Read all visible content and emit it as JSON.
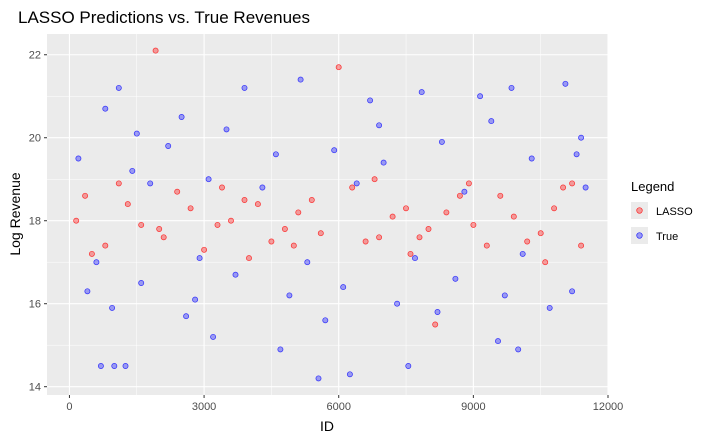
{
  "chart_data": {
    "type": "scatter",
    "title": "LASSO Predictions vs. True Revenues",
    "xlabel": "ID",
    "ylabel": "Log Revenue",
    "xlim": [
      -500,
      12000
    ],
    "ylim": [
      13.8,
      22.5
    ],
    "x_ticks": [
      0,
      3000,
      6000,
      9000,
      12000
    ],
    "x_tick_labels": [
      "0",
      "3000",
      "6000",
      "9000",
      "12000"
    ],
    "y_ticks": [
      14,
      16,
      18,
      20,
      22
    ],
    "y_tick_labels": [
      "14",
      "16",
      "18",
      "20",
      "22"
    ],
    "grid": true,
    "legend": {
      "title": "Legend",
      "position": "right",
      "entries": [
        {
          "label": "LASSO",
          "color": "#ff0000"
        },
        {
          "label": "True",
          "color": "#0000ff"
        }
      ]
    },
    "series": [
      {
        "name": "LASSO",
        "color": "#ff0000",
        "points": [
          [
            1920,
            22.1
          ],
          [
            6000,
            21.7
          ],
          [
            8150,
            15.5
          ],
          [
            350,
            18.6
          ],
          [
            800,
            17.4
          ],
          [
            1300,
            18.4
          ],
          [
            2100,
            17.6
          ],
          [
            2700,
            18.3
          ],
          [
            3300,
            17.9
          ],
          [
            3900,
            18.5
          ],
          [
            4500,
            17.5
          ],
          [
            5100,
            18.2
          ],
          [
            5600,
            17.7
          ],
          [
            6300,
            18.8
          ],
          [
            6900,
            17.6
          ],
          [
            7500,
            18.3
          ],
          [
            8000,
            17.8
          ],
          [
            8700,
            18.6
          ],
          [
            9300,
            17.4
          ],
          [
            9900,
            18.1
          ],
          [
            10500,
            17.7
          ],
          [
            11200,
            18.9
          ],
          [
            500,
            17.2
          ],
          [
            1600,
            17.9
          ],
          [
            2400,
            18.7
          ],
          [
            3000,
            17.3
          ],
          [
            3600,
            18.0
          ],
          [
            4200,
            18.4
          ],
          [
            4800,
            17.8
          ],
          [
            5400,
            18.5
          ],
          [
            6600,
            17.5
          ],
          [
            7200,
            18.1
          ],
          [
            7800,
            17.6
          ],
          [
            8400,
            18.2
          ],
          [
            9000,
            17.9
          ],
          [
            9600,
            18.6
          ],
          [
            10200,
            17.5
          ],
          [
            10800,
            18.3
          ],
          [
            11400,
            17.4
          ],
          [
            150,
            18.0
          ],
          [
            1100,
            18.9
          ],
          [
            2000,
            17.8
          ],
          [
            3400,
            18.8
          ],
          [
            5000,
            17.4
          ],
          [
            6800,
            19.0
          ],
          [
            8900,
            18.9
          ],
          [
            10600,
            17.0
          ],
          [
            11000,
            18.8
          ],
          [
            4000,
            17.1
          ],
          [
            7600,
            17.2
          ]
        ]
      },
      {
        "name": "True",
        "color": "#0000ff",
        "points": [
          [
            700,
            14.5
          ],
          [
            1000,
            14.5
          ],
          [
            1250,
            14.5
          ],
          [
            3200,
            15.2
          ],
          [
            4700,
            14.9
          ],
          [
            5550,
            14.2
          ],
          [
            6250,
            14.3
          ],
          [
            7550,
            14.5
          ],
          [
            10000,
            14.9
          ],
          [
            9550,
            15.1
          ],
          [
            800,
            20.7
          ],
          [
            1100,
            21.2
          ],
          [
            2500,
            20.5
          ],
          [
            3900,
            21.2
          ],
          [
            5150,
            21.4
          ],
          [
            6700,
            20.9
          ],
          [
            7850,
            21.1
          ],
          [
            9150,
            21.0
          ],
          [
            9850,
            21.2
          ],
          [
            11050,
            21.3
          ],
          [
            200,
            19.5
          ],
          [
            1400,
            19.2
          ],
          [
            2200,
            19.8
          ],
          [
            3100,
            19.0
          ],
          [
            4600,
            19.6
          ],
          [
            5900,
            19.7
          ],
          [
            7000,
            19.4
          ],
          [
            8300,
            19.9
          ],
          [
            10300,
            19.5
          ],
          [
            11300,
            19.6
          ],
          [
            400,
            16.3
          ],
          [
            1600,
            16.5
          ],
          [
            2800,
            16.1
          ],
          [
            3700,
            16.7
          ],
          [
            4900,
            16.2
          ],
          [
            6100,
            16.4
          ],
          [
            7300,
            16.0
          ],
          [
            8600,
            16.6
          ],
          [
            9700,
            16.2
          ],
          [
            11200,
            16.3
          ],
          [
            600,
            17.0
          ],
          [
            1800,
            18.9
          ],
          [
            2900,
            17.1
          ],
          [
            4300,
            18.8
          ],
          [
            5300,
            17.0
          ],
          [
            6400,
            18.9
          ],
          [
            7700,
            17.1
          ],
          [
            8800,
            18.7
          ],
          [
            10100,
            17.2
          ],
          [
            11500,
            18.8
          ],
          [
            2600,
            15.7
          ],
          [
            5700,
            15.6
          ],
          [
            8200,
            15.8
          ],
          [
            10700,
            15.9
          ],
          [
            950,
            15.9
          ],
          [
            3500,
            20.2
          ],
          [
            6900,
            20.3
          ],
          [
            9400,
            20.4
          ],
          [
            1500,
            20.1
          ],
          [
            11400,
            20.0
          ]
        ]
      }
    ]
  }
}
